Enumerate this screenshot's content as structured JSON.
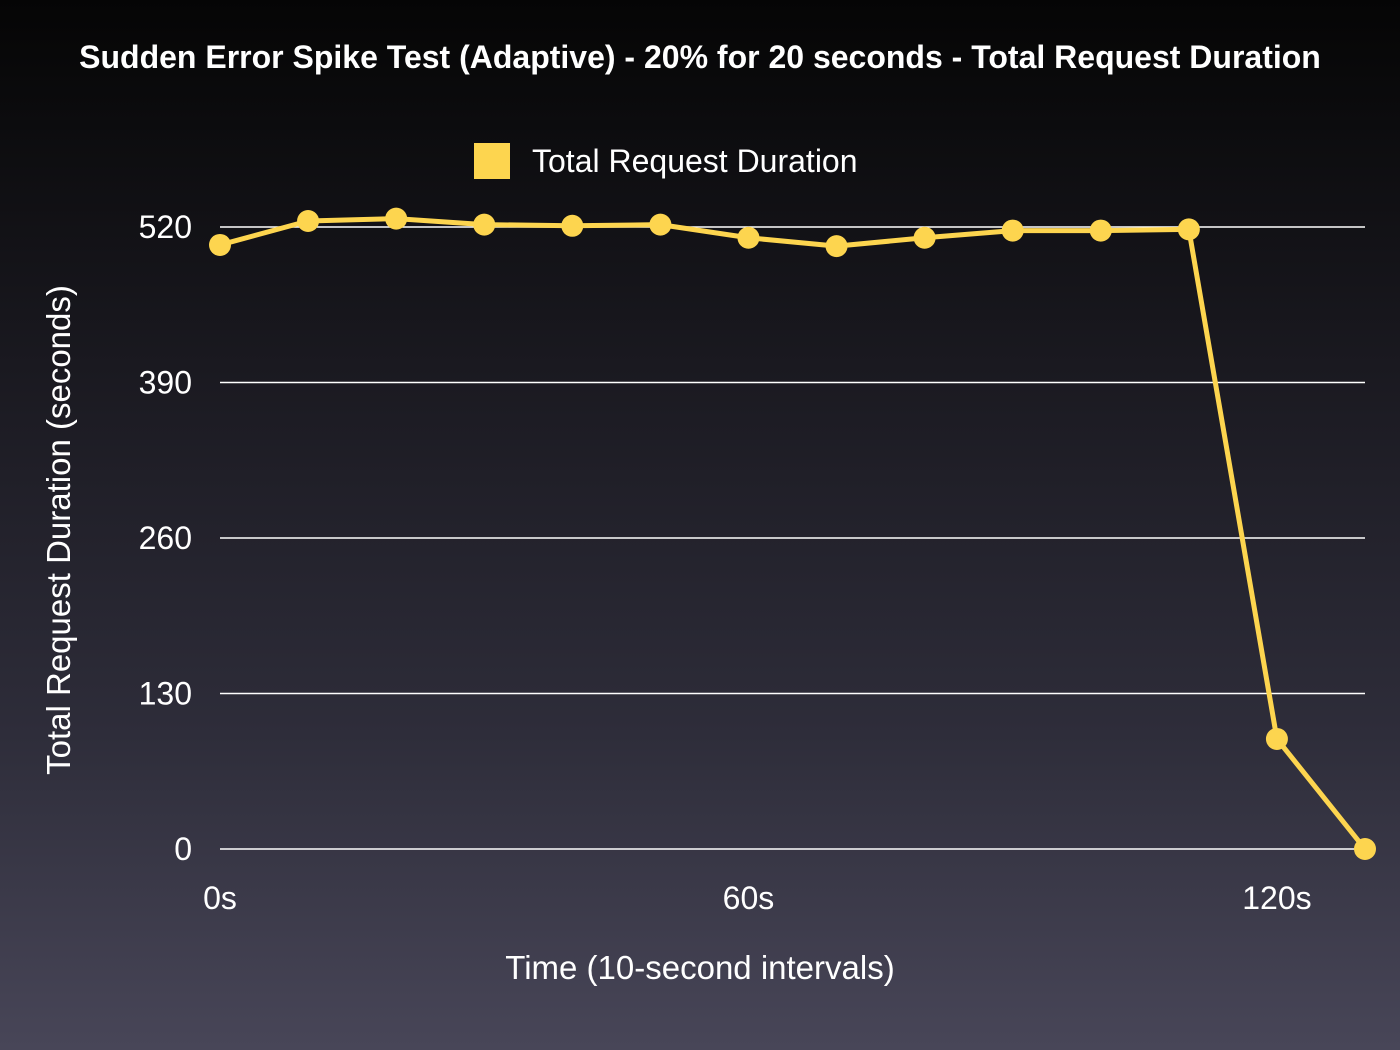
{
  "chart_data": {
    "type": "line",
    "title": "Sudden Error Spike Test (Adaptive) - 20% for 20 seconds - Total Request Duration",
    "xlabel": "Time (10-second intervals)",
    "ylabel": "Total Request Duration (seconds)",
    "x_tick_labels": [
      {
        "x": 0,
        "label": "0s"
      },
      {
        "x": 60,
        "label": "60s"
      },
      {
        "x": 120,
        "label": "120s"
      }
    ],
    "y_ticks": [
      0,
      130,
      260,
      390,
      520
    ],
    "xlim": [
      0,
      130
    ],
    "ylim": [
      0,
      520
    ],
    "grid": true,
    "legend_position": "top-center",
    "series": [
      {
        "name": "Total Request Duration",
        "color": "#fdd54f",
        "x": [
          0,
          10,
          20,
          30,
          40,
          50,
          60,
          70,
          80,
          90,
          100,
          110,
          120,
          130
        ],
        "values": [
          505,
          525,
          527,
          522,
          521,
          522,
          511,
          504,
          511,
          517,
          517,
          518,
          92,
          0
        ]
      }
    ]
  }
}
